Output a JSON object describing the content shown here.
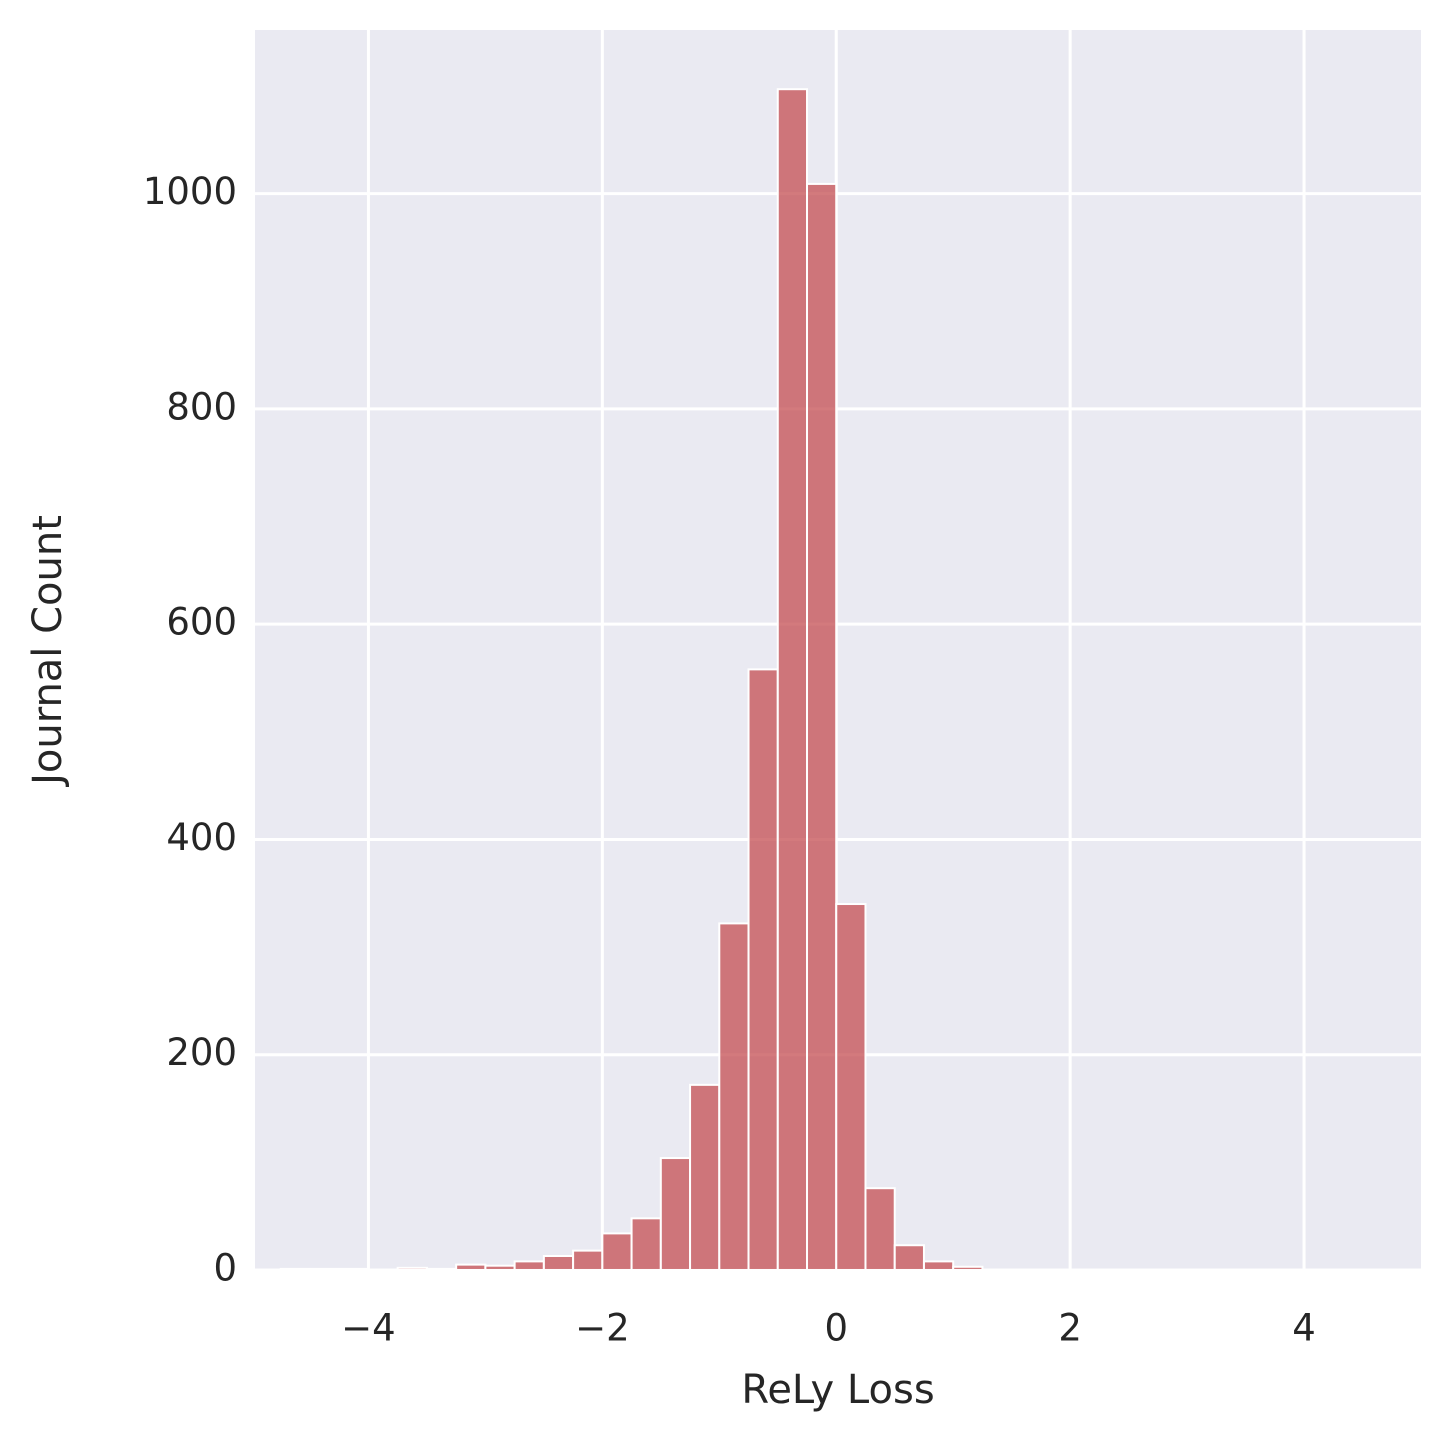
{
  "chart_data": {
    "type": "histogram",
    "x_label": "ReLy Loss",
    "y_label": "Journal Count",
    "bins": [
      -4.75,
      -4.5,
      -4.25,
      -4.0,
      -3.75,
      -3.5,
      -3.25,
      -3.0,
      -2.75,
      -2.5,
      -2.25,
      -2.0,
      -1.75,
      -1.5,
      -1.25,
      -1.0,
      -0.75,
      -0.5,
      -0.25,
      0,
      0.25,
      0.5,
      0.75,
      1.0,
      1.25,
      1.5,
      1.75,
      2.0,
      2.25,
      2.5,
      2.75,
      3.0,
      3.25,
      3.5,
      3.75,
      4.0,
      4.25,
      4.5,
      4.75
    ],
    "values": [
      1,
      1,
      1,
      0,
      2,
      1,
      5,
      4,
      8,
      13,
      18,
      34,
      48,
      104,
      172,
      322,
      558,
      1097,
      1009,
      340,
      76,
      23,
      8,
      3,
      0,
      0,
      0,
      0,
      0,
      0,
      0,
      0,
      0,
      0,
      0,
      0,
      0,
      0
    ],
    "color": "#c44e52",
    "alpha": 0.75,
    "xlim": [
      -4.97,
      5.0
    ],
    "ylim": [
      0,
      1152
    ],
    "xticks": [
      {
        "value": -4,
        "label": "−4"
      },
      {
        "value": -2,
        "label": "−2"
      },
      0,
      2,
      4
    ],
    "yticks": [
      0,
      200,
      400,
      600,
      800,
      1000
    ],
    "grid": true
  }
}
